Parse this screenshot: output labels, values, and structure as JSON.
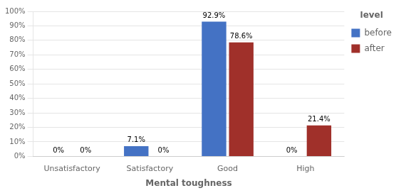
{
  "chart_data": {
    "type": "bar",
    "categories": [
      "Unsatisfactory",
      "Satisfactory",
      "Good",
      "High"
    ],
    "series": [
      {
        "name": "before",
        "color": "#4472C4",
        "values": [
          0,
          7.1,
          92.9,
          0
        ],
        "value_labels": [
          "0%",
          "7.1%",
          "92.9%",
          "0%"
        ]
      },
      {
        "name": "after",
        "color": "#A0302A",
        "values": [
          0,
          0,
          78.6,
          21.4
        ],
        "value_labels": [
          "0%",
          "0%",
          "78.6%",
          "21.4%"
        ]
      }
    ],
    "xlabel": "Mental toughness",
    "annotations": [
      "level"
    ],
    "ylim": [
      0,
      100
    ],
    "yticks": [
      {
        "value": 0,
        "label": "0%"
      },
      {
        "value": 10,
        "label": "10%"
      },
      {
        "value": 20,
        "label": "20%"
      },
      {
        "value": 30,
        "label": "30%"
      },
      {
        "value": 40,
        "label": "40%"
      },
      {
        "value": 50,
        "label": "50%"
      },
      {
        "value": 60,
        "label": "60%"
      },
      {
        "value": 70,
        "label": "70%"
      },
      {
        "value": 80,
        "label": "80%"
      },
      {
        "value": 90,
        "label": "90%"
      },
      {
        "value": 100,
        "label": "100%"
      }
    ],
    "grid": true,
    "legend": "right",
    "data_labels": true
  }
}
